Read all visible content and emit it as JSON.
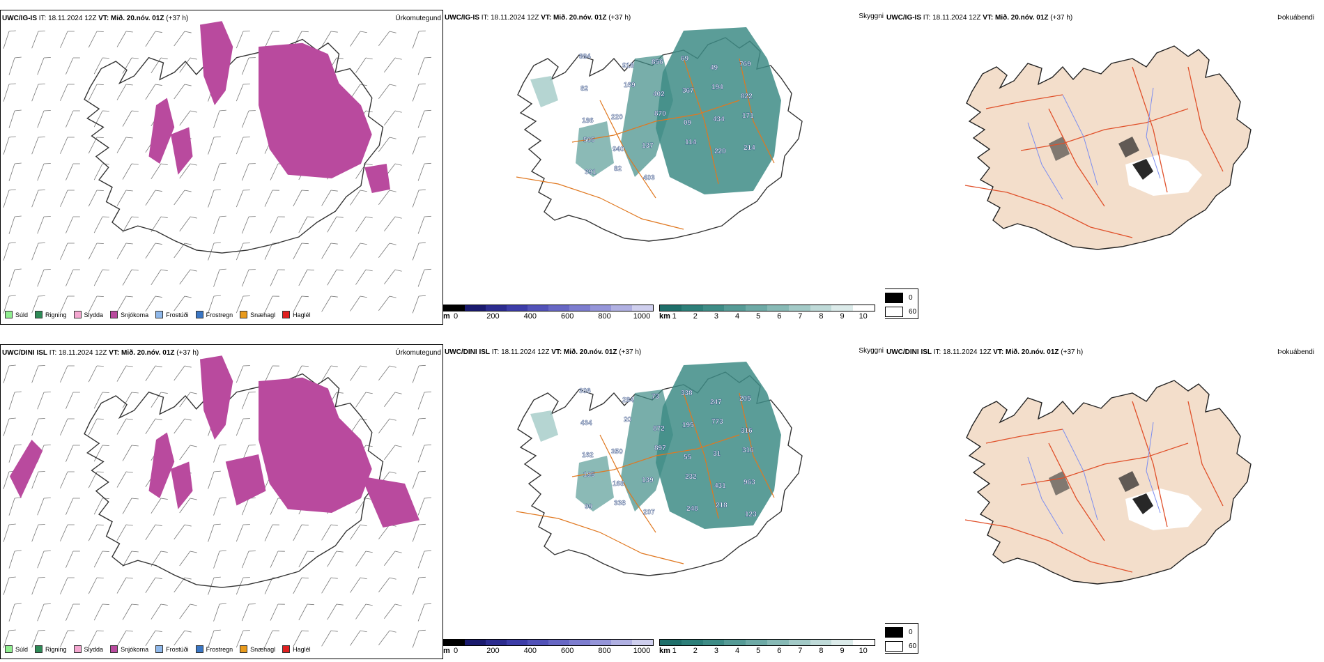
{
  "rows": [
    {
      "model": "UWC/IG-IS",
      "it_label": "IT:",
      "it_value": "18.11.2024 12Z",
      "vt_label": "VT:",
      "vt_value": "Mið. 20.nóv. 01Z",
      "lead": "(+37 h)",
      "ceiling_labels": [
        "884",
        "918",
        "856",
        "69",
        "49",
        "769",
        "82",
        "169",
        "402",
        "367",
        "194",
        "822",
        "186",
        "220",
        "870",
        "09",
        "434",
        "171",
        "505",
        "940",
        "137",
        "114",
        "220",
        "214",
        "391",
        "82",
        "403"
      ],
      "title": {
        "model": "UWC/IG-IS",
        "rest": " IT: 18.11.2024 12Z ",
        "vt": "VT: Mið. 20.nóv. 01Z",
        "lead": " (+37 h)"
      }
    },
    {
      "model": "UWC/DINI ISL",
      "it_label": "IT:",
      "it_value": "18.11.2024 12Z",
      "vt_label": "VT:",
      "vt_value": "Mið. 20.nóv. 01Z",
      "lead": "(+37 h)",
      "ceiling_labels": [
        "306",
        "284",
        "73",
        "338",
        "247",
        "205",
        "434",
        "20",
        "872",
        "195",
        "773",
        "316",
        "162",
        "350",
        "897",
        "55",
        "31",
        "316",
        "195",
        "168",
        "139",
        "232",
        "431",
        "963",
        "99",
        "338",
        "207",
        "248",
        "218",
        "123"
      ],
      "title": {
        "model": "UWC/DINI ISL",
        "rest": " IT: 18.11.2024 12Z ",
        "vt": "VT: Mið. 20.nóv. 01Z",
        "lead": " (+37 h)"
      }
    }
  ],
  "panel_types": {
    "precip": "Úrkomutegund",
    "cloud": "Skyggni",
    "fog": "Þokuábendi"
  },
  "precip_legend": [
    {
      "label": "Súld",
      "color": "#90EE90"
    },
    {
      "label": "Rigning",
      "color": "#2E8B57"
    },
    {
      "label": "Slydda",
      "color": "#F4A7D0"
    },
    {
      "label": "Snjókoma",
      "color": "#B94A9E"
    },
    {
      "label": "Frostúði",
      "color": "#8FB8EA"
    },
    {
      "label": "Frostregn",
      "color": "#3A76C4"
    },
    {
      "label": "Snæhagl",
      "color": "#E89A1C"
    },
    {
      "label": "Haglél",
      "color": "#E02020"
    }
  ],
  "ceiling_bar": {
    "unit": "m",
    "ticks": [
      "0",
      "200",
      "400",
      "600",
      "800",
      "1000"
    ],
    "colors": [
      "#000000",
      "#1a1a6e",
      "#2c2c8f",
      "#3d3da8",
      "#5252b8",
      "#6767c4",
      "#7d7dcf",
      "#9595d9",
      "#b0b0e2",
      "#cfcfee"
    ]
  },
  "visibility_bar": {
    "unit": "km",
    "ticks": [
      "1",
      "2",
      "3",
      "4",
      "5",
      "6",
      "7",
      "8",
      "9",
      "10"
    ],
    "colors": [
      "#1f6f6a",
      "#2d7f79",
      "#3e8c86",
      "#569b96",
      "#6eaaa6",
      "#88bab6",
      "#a3cac7",
      "#bfdad8",
      "#dcebea",
      "#ffffff"
    ]
  },
  "fog_legend": [
    {
      "label": "0",
      "color": "#000000"
    },
    {
      "label": "60",
      "color": "#ffffff"
    }
  ]
}
